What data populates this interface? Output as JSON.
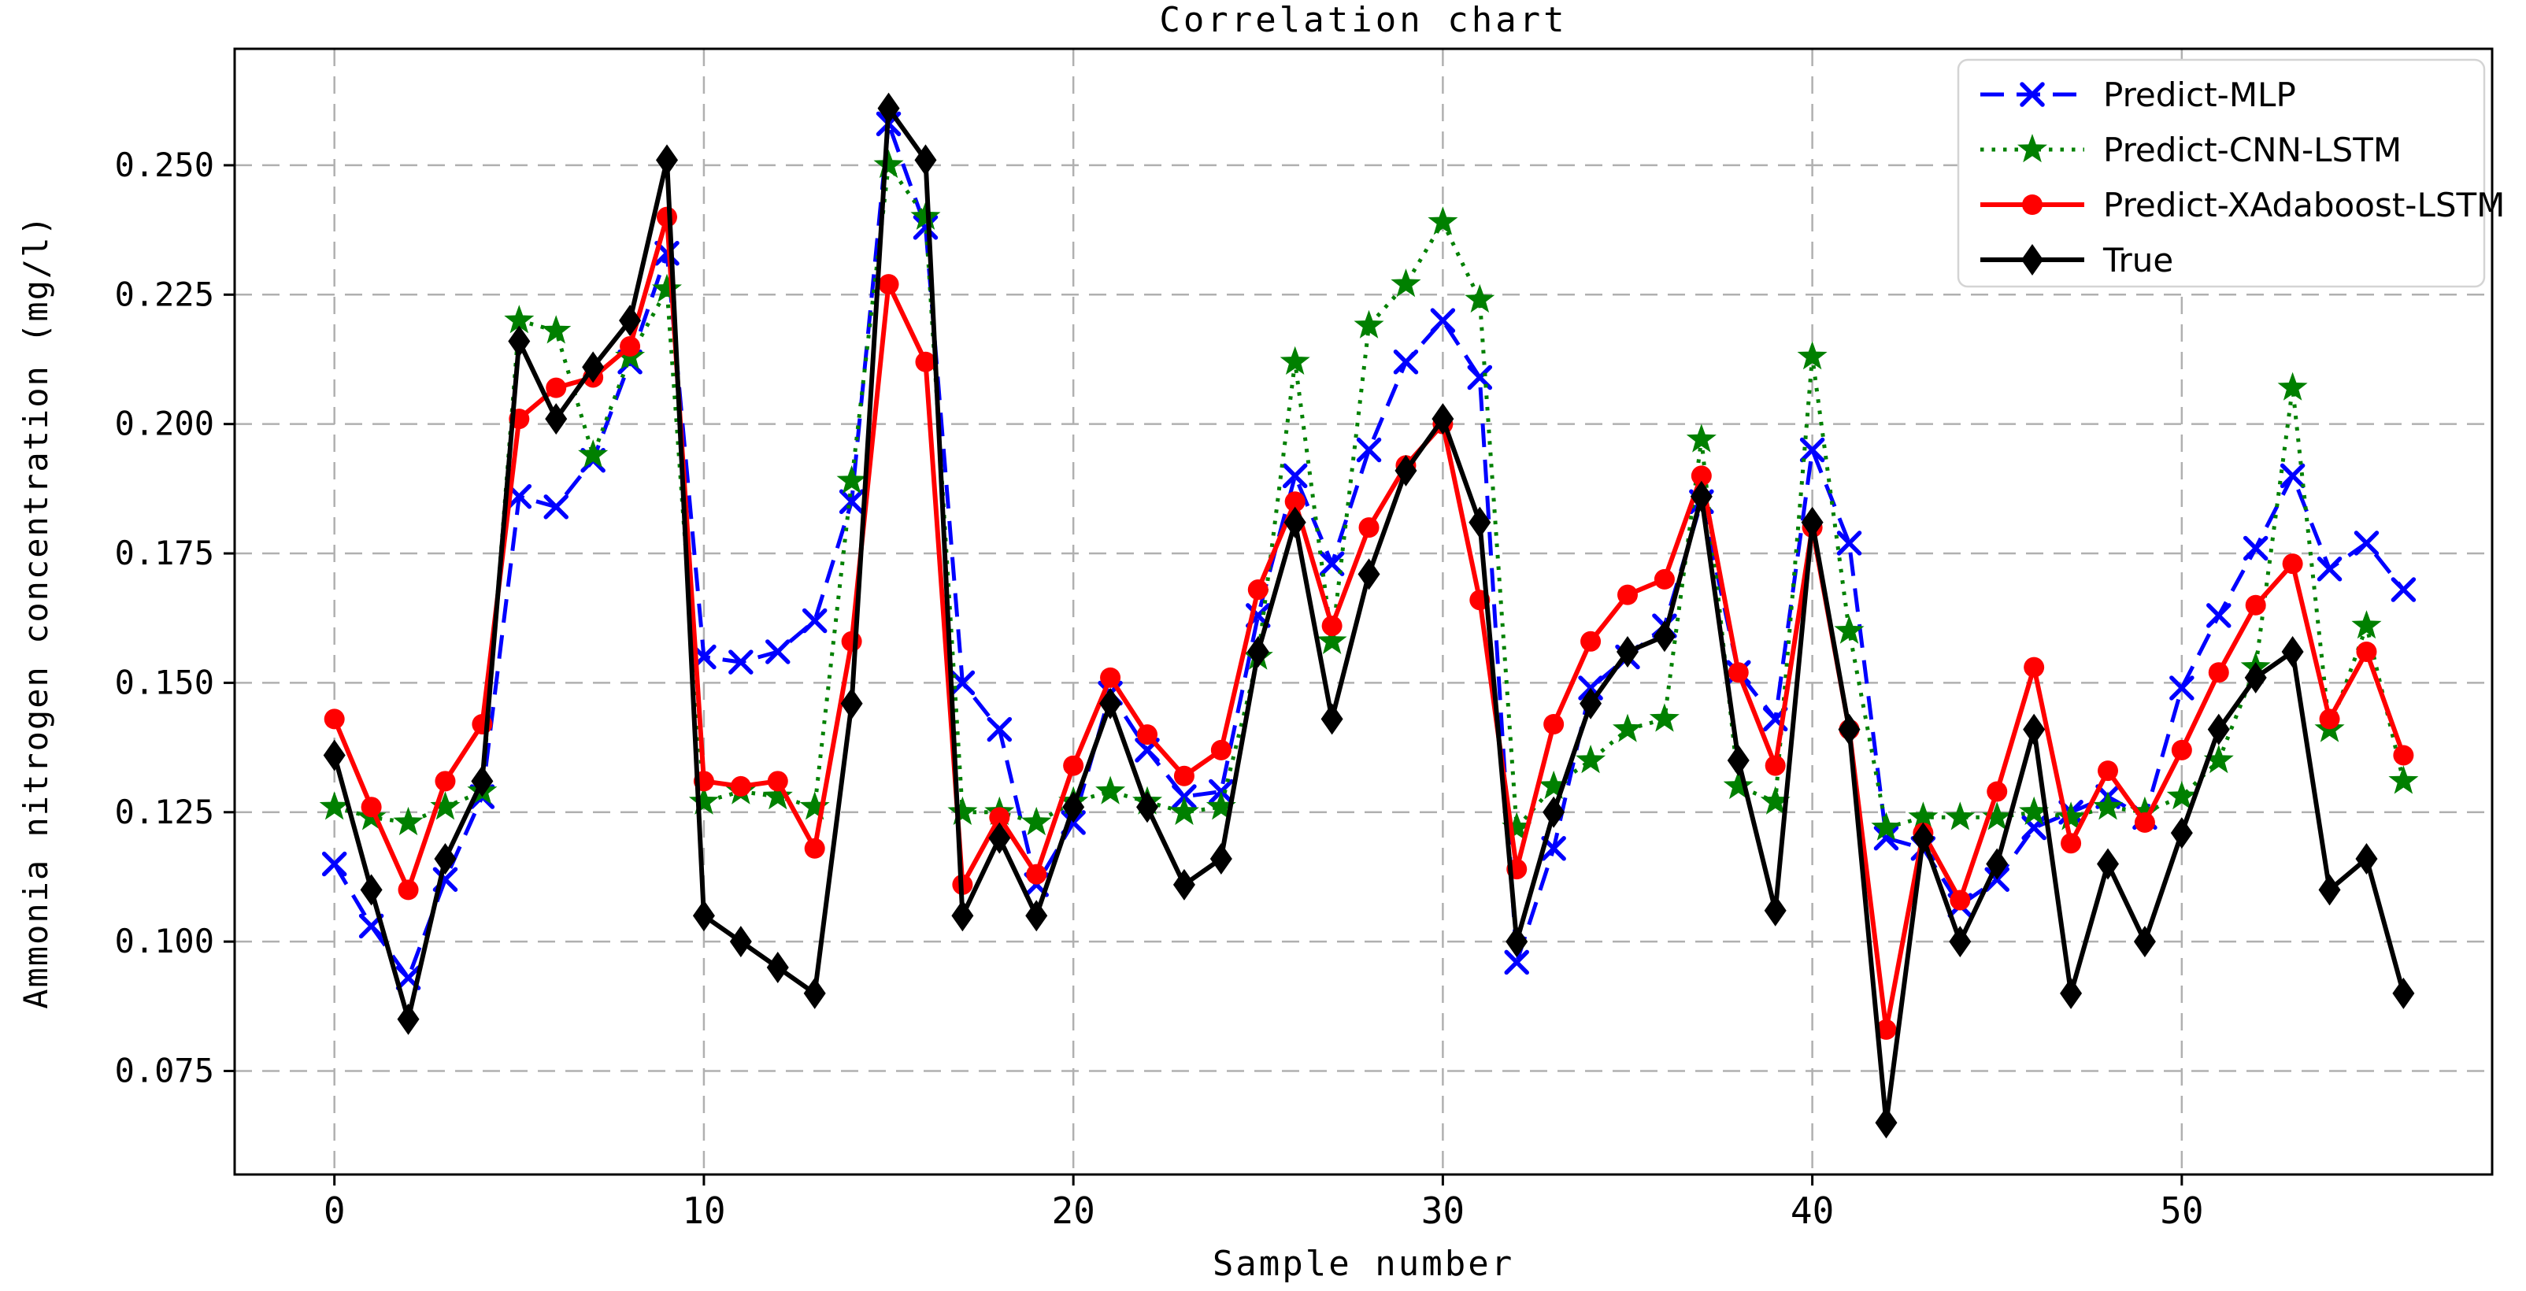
{
  "figure": {
    "title": "Correlation chart",
    "xlabel": "Sample number",
    "ylabel": "Ammonia nitrogen concentration (mg/l)"
  },
  "chart_data": {
    "type": "line",
    "title": "Correlation chart",
    "xlabel": "Sample number",
    "ylabel": "Ammonia nitrogen concentration (mg/l)",
    "grid": true,
    "legend_position": "upper right",
    "xlim": [
      -2.7,
      58.4
    ],
    "ylim": [
      0.055,
      0.2725
    ],
    "xticks": [
      0,
      10,
      20,
      30,
      40,
      50
    ],
    "yticks": [
      0.075,
      0.1,
      0.125,
      0.15,
      0.175,
      0.2,
      0.225,
      0.25
    ],
    "x": [
      0,
      1,
      2,
      3,
      4,
      5,
      6,
      7,
      8,
      9,
      10,
      11,
      12,
      13,
      14,
      15,
      16,
      17,
      18,
      19,
      20,
      21,
      22,
      23,
      24,
      25,
      26,
      27,
      28,
      29,
      30,
      31,
      32,
      33,
      34,
      35,
      36,
      37,
      38,
      39,
      40,
      41,
      42,
      43,
      44,
      45,
      46,
      47,
      48,
      49,
      50,
      51,
      52,
      53,
      54,
      55,
      56
    ],
    "series": [
      {
        "name": "Predict-MLP",
        "color": "#0000ff",
        "line": "dashed",
        "marker": "x",
        "values": [
          0.115,
          0.103,
          0.093,
          0.112,
          0.128,
          0.186,
          0.184,
          0.193,
          0.212,
          0.233,
          0.155,
          0.154,
          0.156,
          0.162,
          0.185,
          0.258,
          0.238,
          0.15,
          0.141,
          0.111,
          0.123,
          0.148,
          0.137,
          0.128,
          0.129,
          0.163,
          0.19,
          0.173,
          0.195,
          0.212,
          0.22,
          0.209,
          0.096,
          0.118,
          0.149,
          0.155,
          0.161,
          0.185,
          0.152,
          0.143,
          0.195,
          0.177,
          0.12,
          0.118,
          0.107,
          0.112,
          0.122,
          0.125,
          0.128,
          0.124,
          0.149,
          0.163,
          0.176,
          0.19,
          0.172,
          0.177,
          0.168
        ]
      },
      {
        "name": "Predict-CNN-LSTM",
        "color": "#008000",
        "line": "dotted",
        "marker": "star",
        "values": [
          0.126,
          0.124,
          0.123,
          0.126,
          0.129,
          0.22,
          0.218,
          0.194,
          0.213,
          0.226,
          0.127,
          0.129,
          0.128,
          0.126,
          0.189,
          0.25,
          0.24,
          0.125,
          0.125,
          0.123,
          0.127,
          0.129,
          0.127,
          0.125,
          0.126,
          0.155,
          0.212,
          0.158,
          0.219,
          0.227,
          0.239,
          0.224,
          0.122,
          0.13,
          0.135,
          0.141,
          0.143,
          0.197,
          0.13,
          0.127,
          0.213,
          0.16,
          0.122,
          0.124,
          0.124,
          0.124,
          0.125,
          0.124,
          0.126,
          0.125,
          0.128,
          0.135,
          0.153,
          0.207,
          0.141,
          0.161,
          0.131
        ]
      },
      {
        "name": "Predict-XAdaboost-LSTM",
        "color": "#ff0000",
        "line": "solid",
        "marker": "circle",
        "values": [
          0.143,
          0.126,
          0.11,
          0.131,
          0.142,
          0.201,
          0.207,
          0.209,
          0.215,
          0.24,
          0.131,
          0.13,
          0.131,
          0.118,
          0.158,
          0.227,
          0.212,
          0.111,
          0.124,
          0.113,
          0.134,
          0.151,
          0.14,
          0.132,
          0.137,
          0.168,
          0.185,
          0.161,
          0.18,
          0.192,
          0.2,
          0.166,
          0.114,
          0.142,
          0.158,
          0.167,
          0.17,
          0.19,
          0.152,
          0.134,
          0.18,
          0.141,
          0.083,
          0.121,
          0.108,
          0.129,
          0.153,
          0.119,
          0.133,
          0.123,
          0.137,
          0.152,
          0.165,
          0.173,
          0.143,
          0.156,
          0.136
        ]
      },
      {
        "name": "True",
        "color": "#000000",
        "line": "solid",
        "marker": "diamond",
        "values": [
          0.136,
          0.11,
          0.085,
          0.116,
          0.131,
          0.216,
          0.201,
          0.211,
          0.22,
          0.251,
          0.105,
          0.1,
          0.095,
          0.09,
          0.146,
          0.261,
          0.251,
          0.105,
          0.12,
          0.105,
          0.126,
          0.146,
          0.126,
          0.111,
          0.116,
          0.156,
          0.181,
          0.143,
          0.171,
          0.191,
          0.201,
          0.181,
          0.1,
          0.125,
          0.146,
          0.156,
          0.159,
          0.186,
          0.135,
          0.106,
          0.181,
          0.141,
          0.065,
          0.12,
          0.1,
          0.115,
          0.141,
          0.09,
          0.115,
          0.1,
          0.121,
          0.141,
          0.151,
          0.156,
          0.11,
          0.116,
          0.09
        ]
      }
    ],
    "colors": {
      "grid": "#b0b0b0",
      "spine": "#000000",
      "legend_border": "#d4d4d4",
      "background": "#ffffff"
    }
  }
}
